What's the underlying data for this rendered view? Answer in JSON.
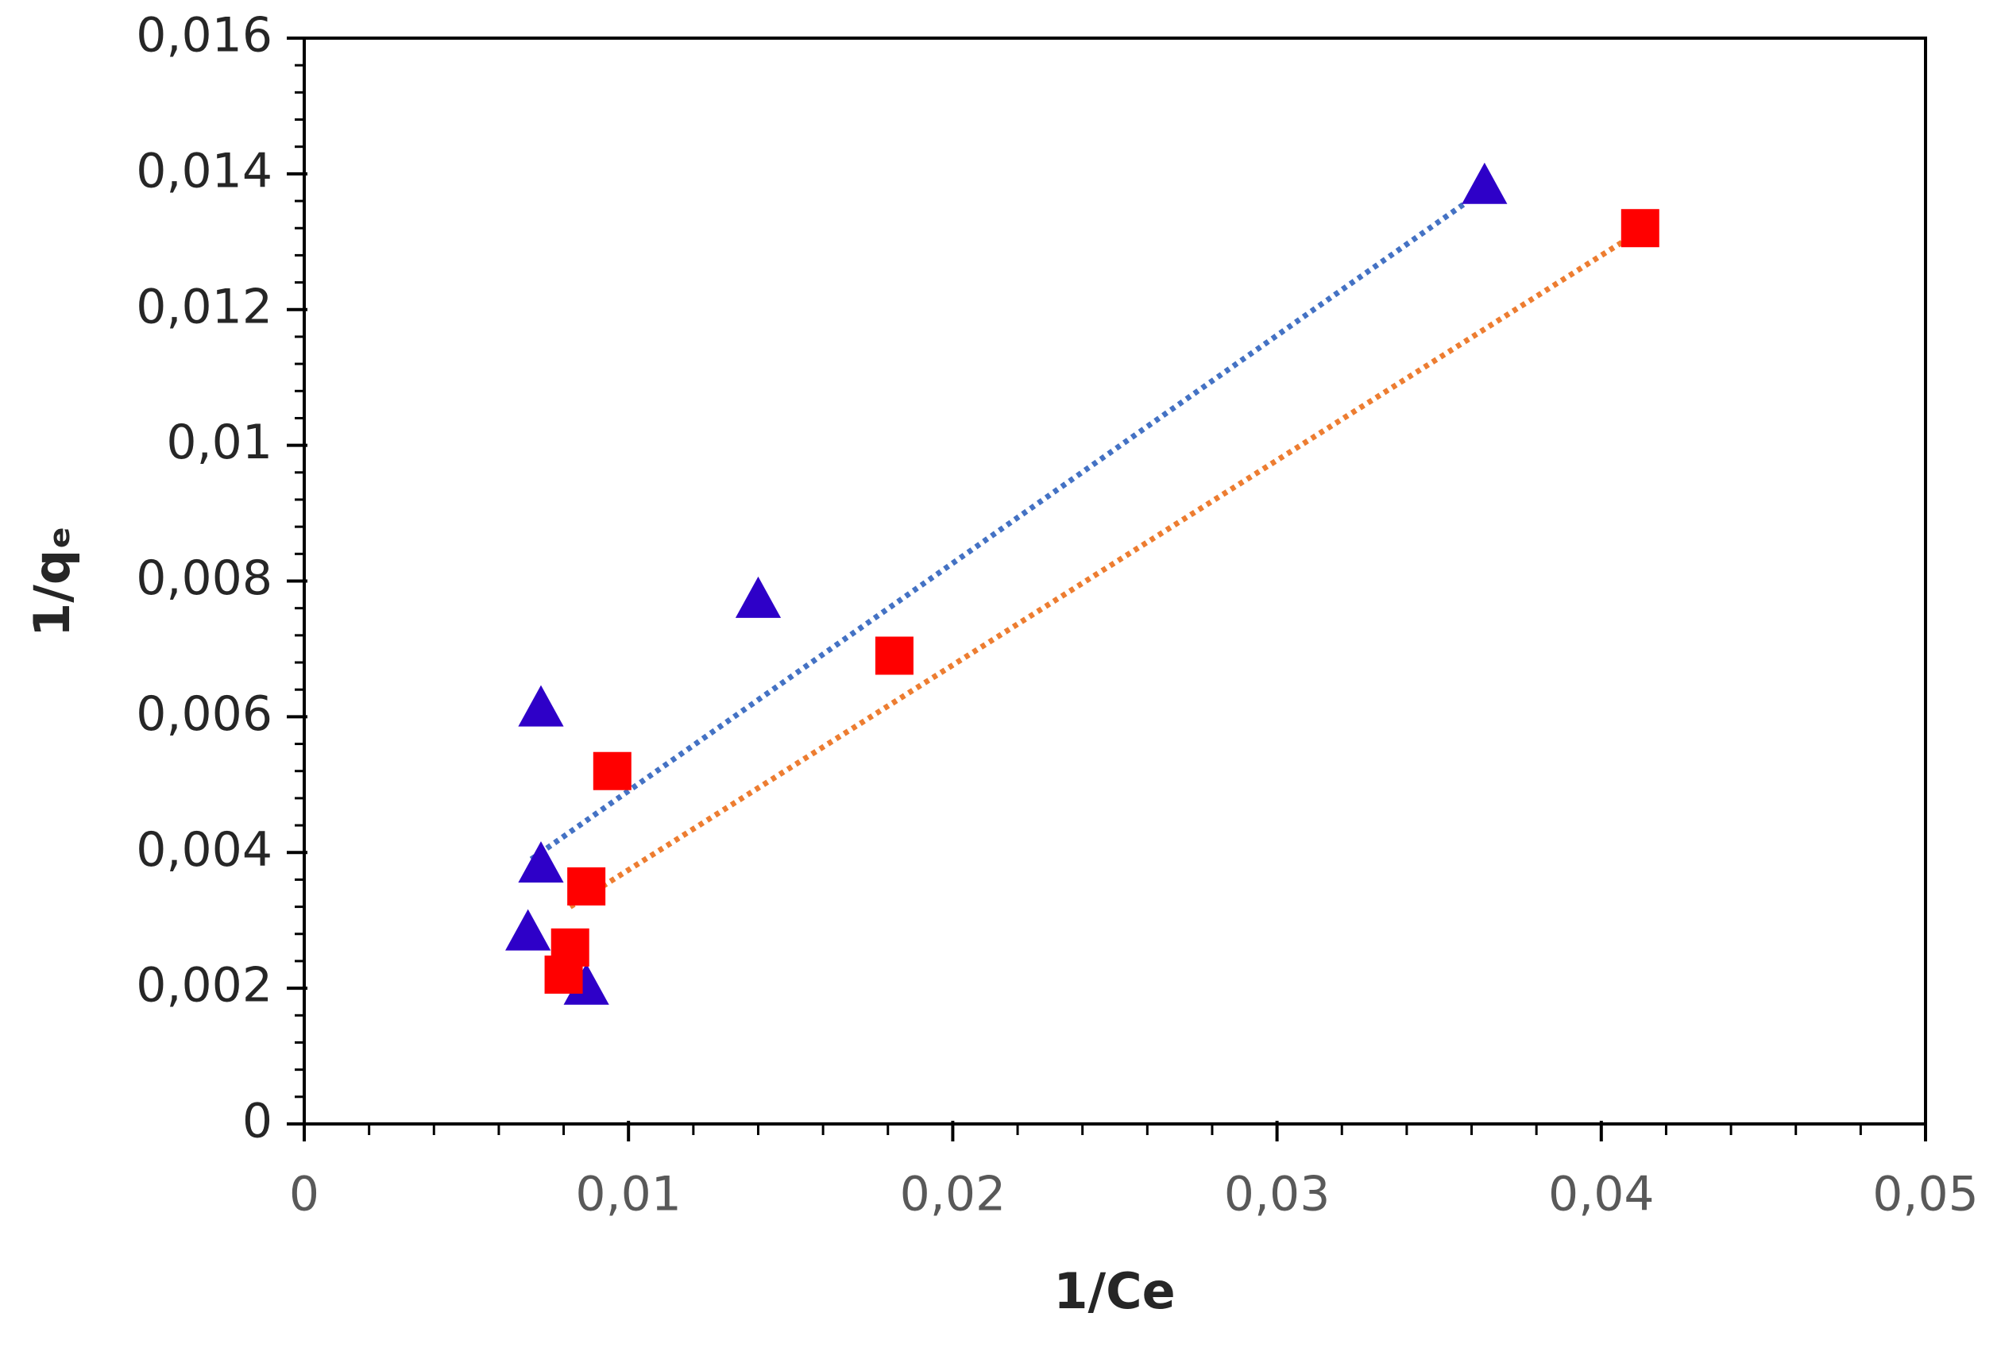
{
  "chart_data": {
    "type": "scatter",
    "xlabel": "1/Ce",
    "ylabel": "1/qₑ",
    "xlim": [
      0,
      0.05
    ],
    "ylim": [
      0,
      0.016
    ],
    "xticks": [
      0,
      {
        "value": 0.01,
        "label": "0,01"
      },
      {
        "value": 0.02,
        "label": "0,02"
      },
      {
        "value": 0.03,
        "label": "0,03"
      },
      {
        "value": 0.04,
        "label": "0,04"
      },
      {
        "value": 0.05,
        "label": "0,05"
      }
    ],
    "yticks": [
      0,
      {
        "value": 0.002,
        "label": "0,002"
      },
      {
        "value": 0.004,
        "label": "0,004"
      },
      {
        "value": 0.006,
        "label": "0,006"
      },
      {
        "value": 0.008,
        "label": "0,008"
      },
      {
        "value": 0.01,
        "label": "0,01"
      },
      {
        "value": 0.012,
        "label": "0,012"
      },
      {
        "value": 0.014,
        "label": "0,014"
      },
      {
        "value": 0.016,
        "label": "0,016"
      }
    ],
    "xminorticks": [
      0.002,
      0.004,
      0.006,
      0.008,
      0.012,
      0.014,
      0.016,
      0.018,
      0.022,
      0.024,
      0.026,
      0.028,
      0.032,
      0.034,
      0.036,
      0.038,
      0.042,
      0.044,
      0.046,
      0.048
    ],
    "yminorticks": [
      0.0004,
      0.0008,
      0.0012,
      0.0016,
      0.0024,
      0.0028,
      0.0032,
      0.0036,
      0.0044,
      0.0048,
      0.0052,
      0.0056,
      0.0064,
      0.0068,
      0.0072,
      0.0076,
      0.0084,
      0.0088,
      0.0092,
      0.0096,
      0.0104,
      0.0108,
      0.0112,
      0.0116,
      0.0124,
      0.0128,
      0.0132,
      0.0136,
      0.0144,
      0.0148,
      0.0152,
      0.0156
    ],
    "series": [
      {
        "marker": "triangle",
        "color": "#2e00c8",
        "x": [
          0.0073,
          0.014,
          0.0073,
          0.0069,
          0.0087,
          0.0364
        ],
        "values": [
          0.0061,
          0.0077,
          0.0038,
          0.0028,
          0.002,
          0.0138
        ]
      },
      {
        "marker": "square",
        "color": "#ff0000",
        "x": [
          0.0095,
          0.0087,
          0.0082,
          0.008,
          0.0182,
          0.0412
        ],
        "values": [
          0.0052,
          0.0035,
          0.0026,
          0.0022,
          0.0069,
          0.0132
        ]
      }
    ],
    "trendlines": [
      {
        "color": "#4472c4",
        "x": [
          0.007,
          0.0359
        ],
        "values": [
          0.0039,
          0.0136
        ]
      },
      {
        "color": "#ed7d31",
        "x": [
          0.0082,
          0.041
        ],
        "values": [
          0.0032,
          0.0131
        ]
      }
    ]
  }
}
